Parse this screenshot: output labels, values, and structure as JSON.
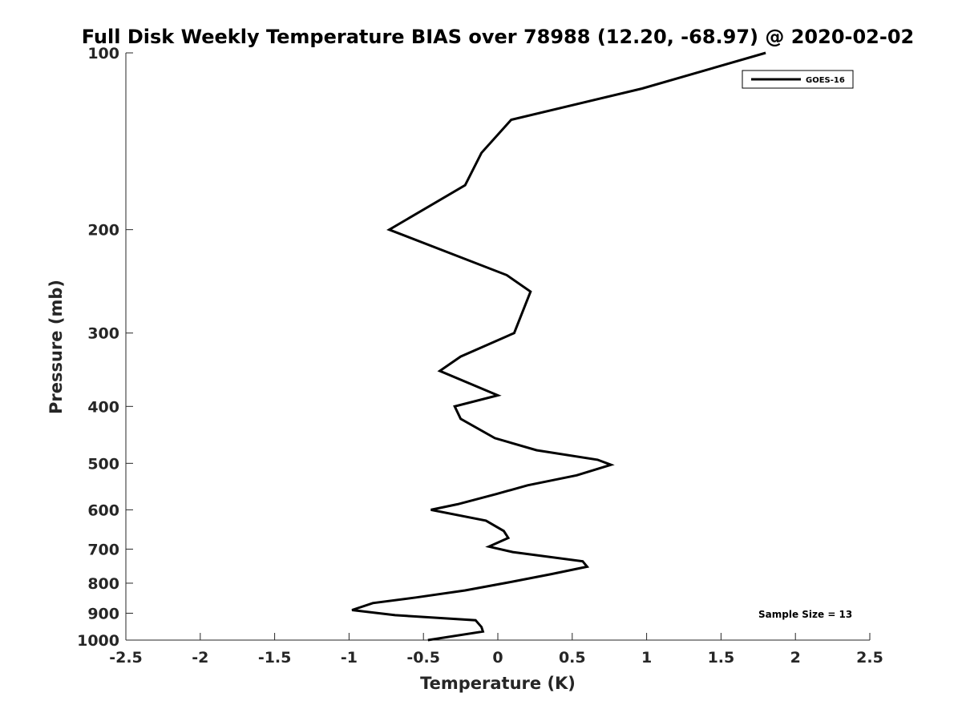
{
  "chart_data": {
    "type": "line",
    "title": "Full Disk Weekly Temperature BIAS over 78988 (12.20, -68.97) @ 2020-02-02",
    "xlabel": "Temperature (K)",
    "ylabel": "Pressure (mb)",
    "xlim": [
      -2.5,
      2.5
    ],
    "ylim": [
      1000,
      100
    ],
    "y_scale": "log",
    "y_reversed": true,
    "x_ticks": [
      "-2.5",
      "-2",
      "-1.5",
      "-1",
      "-0.5",
      "0",
      "0.5",
      "1",
      "1.5",
      "2",
      "2.5"
    ],
    "y_ticks": [
      "100",
      "200",
      "300",
      "400",
      "500",
      "600",
      "700",
      "800",
      "900",
      "1000"
    ],
    "grid": false,
    "legend_position": "top-right",
    "annotation": "Sample Size = 13",
    "series": [
      {
        "name": "GOES-16",
        "color": "#000000",
        "x": [
          1.8,
          0.97,
          0.09,
          -0.11,
          -0.22,
          -0.73,
          0.06,
          0.22,
          0.11,
          -0.25,
          -0.39,
          0.0,
          -0.29,
          -0.25,
          -0.02,
          0.26,
          0.67,
          0.76,
          0.53,
          0.2,
          -0.01,
          -0.27,
          -0.45,
          -0.08,
          0.04,
          0.07,
          -0.06,
          0.1,
          0.57,
          0.6,
          0.36,
          0.1,
          -0.22,
          -0.55,
          -0.84,
          -0.98,
          -0.69,
          -0.15,
          -0.11,
          -0.1,
          -0.47
        ],
        "y": [
          100,
          115,
          130,
          148,
          168,
          200,
          239,
          255,
          300,
          329,
          348,
          383,
          400,
          420,
          453,
          475,
          493,
          503,
          524,
          545,
          564,
          587,
          600,
          626,
          652,
          670,
          693,
          708,
          734,
          750,
          772,
          795,
          823,
          846,
          865,
          889,
          907,
          925,
          950,
          967,
          1000
        ]
      }
    ]
  }
}
